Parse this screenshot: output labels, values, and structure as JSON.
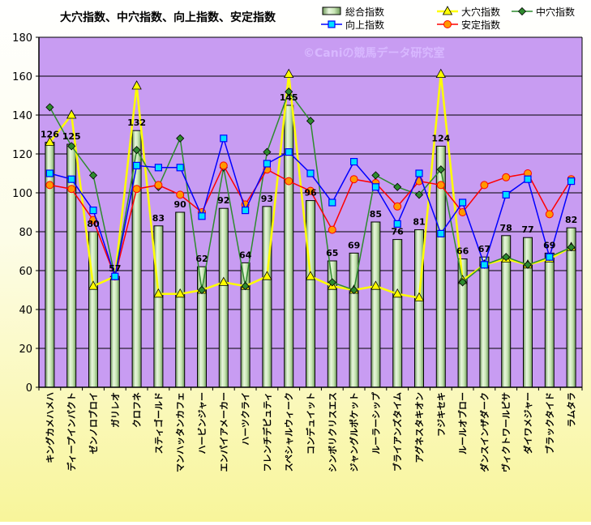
{
  "chart_data": {
    "type": "bar+line",
    "title": "大穴指数、中穴指数、向上指数、安定指数",
    "watermark": "©Caniの競馬データ研究室",
    "ylim": [
      0,
      180
    ],
    "yticks": [
      0,
      20,
      40,
      60,
      80,
      100,
      120,
      140,
      160,
      180
    ],
    "grid": true,
    "legend_position": "top-right",
    "plot_background": "#c89cf2",
    "categories": [
      "キングカメハメハ",
      "ディープインパクト",
      "ゼンノロブロイ",
      "ガリレオ",
      "クロフネ",
      "スティゴールド",
      "マンハッタンカフェ",
      "ハービンジャー",
      "エンパイアメーカー",
      "ハーツクライ",
      "フレンチデピュティ",
      "スペシャルウィーク",
      "コンデュイット",
      "シンボリクリスエス",
      "ジャングルポケット",
      "ルーラーシップ",
      "ブライアンズタイム",
      "アグネスタキオン",
      "フジキセキ",
      "ルールオブロー",
      "ダンスインザダーク",
      "ヴィクトワールピサ",
      "ダイワメジャー",
      "ブラックタイド",
      "ラムタラ"
    ],
    "series": [
      {
        "name": "総合指数",
        "kind": "bar",
        "color": "#c8e6b4",
        "values": [
          126,
          125,
          80,
          57,
          132,
          83,
          90,
          62,
          92,
          64,
          93,
          145,
          96,
          65,
          69,
          85,
          76,
          81,
          124,
          66,
          67,
          78,
          77,
          69,
          82
        ],
        "labels": [
          "126",
          "125",
          "80",
          "57",
          "132",
          "83",
          "90",
          "62",
          "92",
          "64",
          "93",
          "145",
          "96",
          "65",
          "69",
          "85",
          "76",
          "81",
          "124",
          "66",
          "67",
          "78",
          "77",
          "69",
          "82"
        ]
      },
      {
        "name": "大穴指数",
        "kind": "line",
        "color": "#ffff00",
        "marker": "triangle",
        "values": [
          126,
          140,
          52,
          57,
          155,
          48,
          48,
          50,
          54,
          52,
          57,
          161,
          57,
          52,
          50,
          52,
          48,
          46,
          161,
          55,
          63,
          66,
          63,
          66,
          72
        ]
      },
      {
        "name": "中穴指数",
        "kind": "line",
        "color": "#2e8b2e",
        "marker": "diamond",
        "values": [
          144,
          124,
          109,
          57,
          122,
          103,
          128,
          50,
          113,
          52,
          121,
          152,
          137,
          54,
          50,
          109,
          103,
          99,
          112,
          54,
          63,
          67,
          63,
          67,
          72
        ]
      },
      {
        "name": "向上指数",
        "kind": "line",
        "color": "#0000ff",
        "marker": "square",
        "values": [
          110,
          107,
          91,
          57,
          114,
          113,
          113,
          88,
          128,
          91,
          115,
          121,
          110,
          95,
          116,
          103,
          84,
          110,
          79,
          95,
          63,
          99,
          107,
          67,
          106
        ]
      },
      {
        "name": "安定指数",
        "kind": "line",
        "color": "#ff0000",
        "marker": "circle",
        "values": [
          104,
          102,
          86,
          57,
          102,
          104,
          99,
          90,
          114,
          94,
          112,
          106,
          101,
          81,
          107,
          105,
          93,
          106,
          104,
          90,
          104,
          108,
          110,
          89,
          107
        ]
      }
    ]
  }
}
